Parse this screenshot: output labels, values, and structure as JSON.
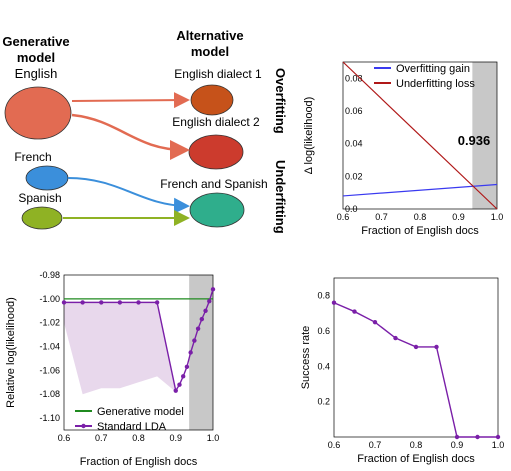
{
  "diagram": {
    "generative_heading": [
      "Generative",
      "model"
    ],
    "alternative_heading": [
      "Alternative",
      "model"
    ],
    "source_labels": [
      "English",
      "French",
      "Spanish"
    ],
    "target_labels": [
      "English dialect 1",
      "English dialect  2",
      "French and Spanish"
    ],
    "side_labels": [
      "Overfitting",
      "Underfitting"
    ],
    "colors": {
      "english": "#e26b52",
      "french": "#3b8fdb",
      "spanish": "#8fb224",
      "dialect1": "#c6521a",
      "dialect2": "#cc3b2d",
      "french_spanish": "#2fae8c"
    }
  },
  "chart_data": [
    {
      "id": "gain_loss",
      "type": "line",
      "xlabel": "Fraction of English docs",
      "ylabel": "Δ log(likelihood)",
      "xlim": [
        0.6,
        1.0
      ],
      "ylim": [
        0.0,
        0.09
      ],
      "xticks": [
        "0.6",
        "0.7",
        "0.8",
        "0.9",
        "1.0"
      ],
      "yticks": [
        "0.0",
        "0.02",
        "0.04",
        "0.06",
        "0.08"
      ],
      "shaded_region": [
        0.936,
        1.0
      ],
      "annotation": "0.936",
      "legend": "top-right",
      "series": [
        {
          "name": "Overfitting gain",
          "color": "#3a3af0",
          "x": [
            0.6,
            1.0
          ],
          "y": [
            0.008,
            0.015
          ]
        },
        {
          "name": "Underfitting loss",
          "color": "#b01818",
          "x": [
            0.6,
            1.0
          ],
          "y": [
            0.09,
            -0.009
          ]
        }
      ]
    },
    {
      "id": "relative_ll",
      "type": "line",
      "xlabel": "Fraction of English docs",
      "ylabel": "Relative log(likelihood)",
      "xlim": [
        0.6,
        1.0
      ],
      "ylim": [
        -1.11,
        -0.98
      ],
      "xticks": [
        "0.6",
        "0.7",
        "0.8",
        "0.9",
        "1.0"
      ],
      "yticks": [
        "-0.98",
        "-1.00",
        "-1.02",
        "-1.04",
        "-1.06",
        "-1.08",
        "-1.10"
      ],
      "shaded_region": [
        0.936,
        1.0
      ],
      "legend": "bottom-left",
      "band": {
        "x": [
          0.6,
          0.65,
          0.7,
          0.75,
          0.8,
          0.85,
          0.9
        ],
        "upper": [
          -1.002,
          -1.002,
          -1.002,
          -1.002,
          -1.002,
          -1.002,
          -1.075
        ],
        "lower": [
          -1.02,
          -1.08,
          -1.075,
          -1.075,
          -1.07,
          -1.065,
          -1.078
        ]
      },
      "series": [
        {
          "name": "Generative model",
          "color": "#1f8a1f",
          "x": [
            0.6,
            1.0
          ],
          "y": [
            -1.0,
            -1.0
          ]
        },
        {
          "name": "Standard LDA",
          "color": "#7a1fa8",
          "markers": true,
          "x": [
            0.6,
            0.65,
            0.7,
            0.75,
            0.8,
            0.85,
            0.9,
            0.91,
            0.92,
            0.93,
            0.94,
            0.95,
            0.96,
            0.97,
            0.98,
            0.99,
            1.0
          ],
          "y": [
            -1.003,
            -1.003,
            -1.003,
            -1.003,
            -1.003,
            -1.003,
            -1.077,
            -1.072,
            -1.065,
            -1.057,
            -1.045,
            -1.035,
            -1.025,
            -1.017,
            -1.01,
            -1.002,
            -0.992
          ]
        }
      ]
    },
    {
      "id": "success_rate",
      "type": "line",
      "xlabel": "Fraction of English docs",
      "ylabel": "Success rate",
      "xlim": [
        0.6,
        1.0
      ],
      "ylim": [
        0.0,
        0.9
      ],
      "xticks": [
        "0.6",
        "0.7",
        "0.8",
        "0.9",
        "1.0"
      ],
      "yticks": [
        "0.2",
        "0.4",
        "0.6",
        "0.8"
      ],
      "series": [
        {
          "name": "",
          "color": "#7a1fa8",
          "markers": true,
          "x": [
            0.6,
            0.65,
            0.7,
            0.75,
            0.8,
            0.85,
            0.9,
            0.95,
            1.0
          ],
          "y": [
            0.76,
            0.71,
            0.65,
            0.56,
            0.51,
            0.51,
            0.0,
            0.0,
            0.0
          ]
        }
      ]
    }
  ]
}
